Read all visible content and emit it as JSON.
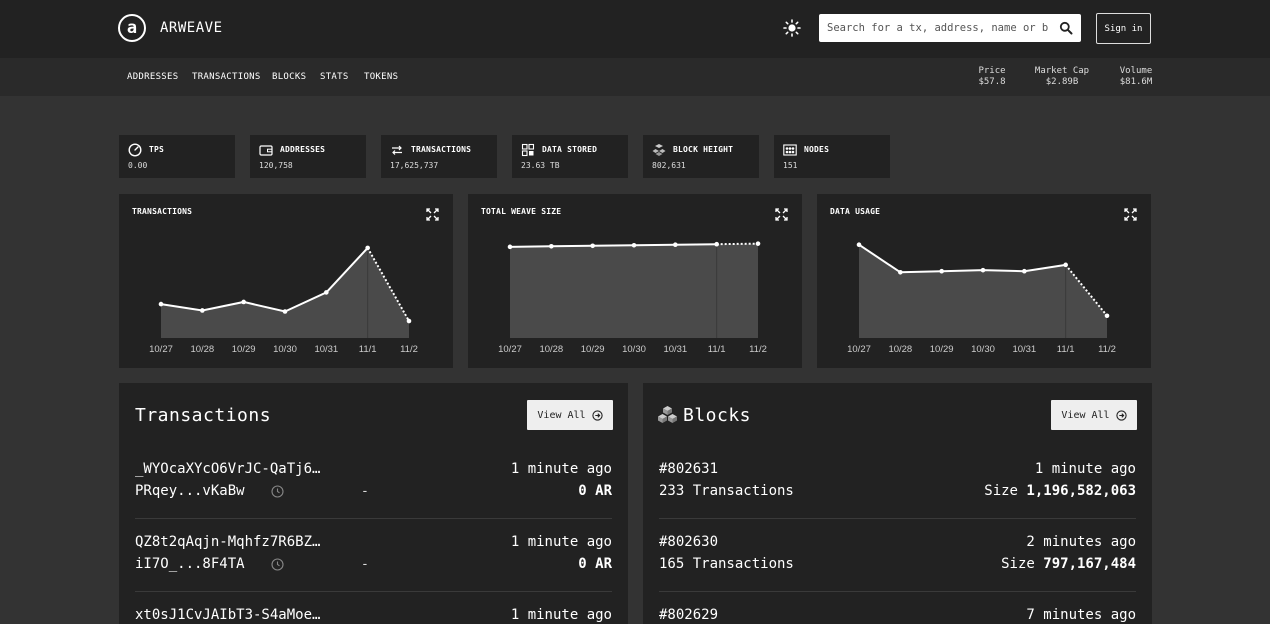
{
  "header": {
    "logo_letter": "a",
    "brand": "ARWEAVE",
    "search_placeholder": "Search for a tx, address, name or block",
    "sign_in": "Sign in"
  },
  "nav": [
    "ADDRESSES",
    "TRANSACTIONS",
    "BLOCKS",
    "STATS",
    "TOKENS"
  ],
  "market": {
    "price_label": "Price",
    "price_value": "$57.8",
    "cap_label": "Market Cap",
    "cap_value": "$2.89B",
    "volume_label": "Volume",
    "volume_value": "$81.6M"
  },
  "stats": [
    {
      "label": "TPS",
      "value": "0.00",
      "icon": "speedometer-icon"
    },
    {
      "label": "ADDRESSES",
      "value": "120,758",
      "icon": "wallet-icon"
    },
    {
      "label": "TRANSACTIONS",
      "value": "17,625,737",
      "icon": "arrows-exchange-icon"
    },
    {
      "label": "DATA STORED",
      "value": "23.63 TB",
      "icon": "database-icon"
    },
    {
      "label": "BLOCK HEIGHT",
      "value": "802,631",
      "icon": "blocks-icon"
    },
    {
      "label": "NODES",
      "value": "151",
      "icon": "nodes-icon"
    }
  ],
  "chart_data": [
    {
      "type": "area",
      "title": "TRANSACTIONS",
      "categories": [
        "10/27",
        "10/28",
        "10/29",
        "10/30",
        "10/31",
        "11/1",
        "11/2"
      ],
      "values": [
        0.32,
        0.26,
        0.34,
        0.25,
        0.43,
        0.85,
        0.16
      ],
      "ylim": [
        0,
        1
      ],
      "last_segment_dotted": true
    },
    {
      "type": "area",
      "title": "TOTAL WEAVE SIZE",
      "categories": [
        "10/27",
        "10/28",
        "10/29",
        "10/30",
        "10/31",
        "11/1",
        "11/2"
      ],
      "values": [
        0.86,
        0.865,
        0.87,
        0.875,
        0.88,
        0.885,
        0.89
      ],
      "ylim": [
        0,
        1
      ],
      "last_segment_dotted": true
    },
    {
      "type": "area",
      "title": "DATA USAGE",
      "categories": [
        "10/27",
        "10/28",
        "10/29",
        "10/30",
        "10/31",
        "11/1",
        "11/2"
      ],
      "values": [
        0.88,
        0.62,
        0.63,
        0.64,
        0.63,
        0.69,
        0.21
      ],
      "ylim": [
        0,
        1
      ],
      "last_segment_dotted": true
    }
  ],
  "transactions": {
    "title": "Transactions",
    "view_all": "View All",
    "items": [
      {
        "id": "_WYOcaXYcO6VrJC-QaTj6…",
        "time": "1 minute ago",
        "owner": "PRqey...vKaBw",
        "target": "-",
        "amount": "0 AR"
      },
      {
        "id": "QZ8t2qAqjn-Mqhfz7R6BZ…",
        "time": "1 minute ago",
        "owner": "iI7O_...8F4TA",
        "target": "-",
        "amount": "0 AR"
      },
      {
        "id": "xt0sJ1CvJAIbT3-S4aMoe…",
        "time": "1 minute ago"
      }
    ]
  },
  "blocks": {
    "title": "Blocks",
    "view_all": "View All",
    "size_label": "Size",
    "items": [
      {
        "height": "#802631",
        "time": "1 minute ago",
        "tx": "233 Transactions",
        "size": "1,196,582,063"
      },
      {
        "height": "#802630",
        "time": "2 minutes ago",
        "tx": "165 Transactions",
        "size": "797,167,484"
      },
      {
        "height": "#802629",
        "time": "7 minutes ago"
      }
    ]
  },
  "colors": {
    "background": "#333333",
    "card": "#222222",
    "area_fill": "#4a4a4a",
    "line": "#ffffff"
  }
}
